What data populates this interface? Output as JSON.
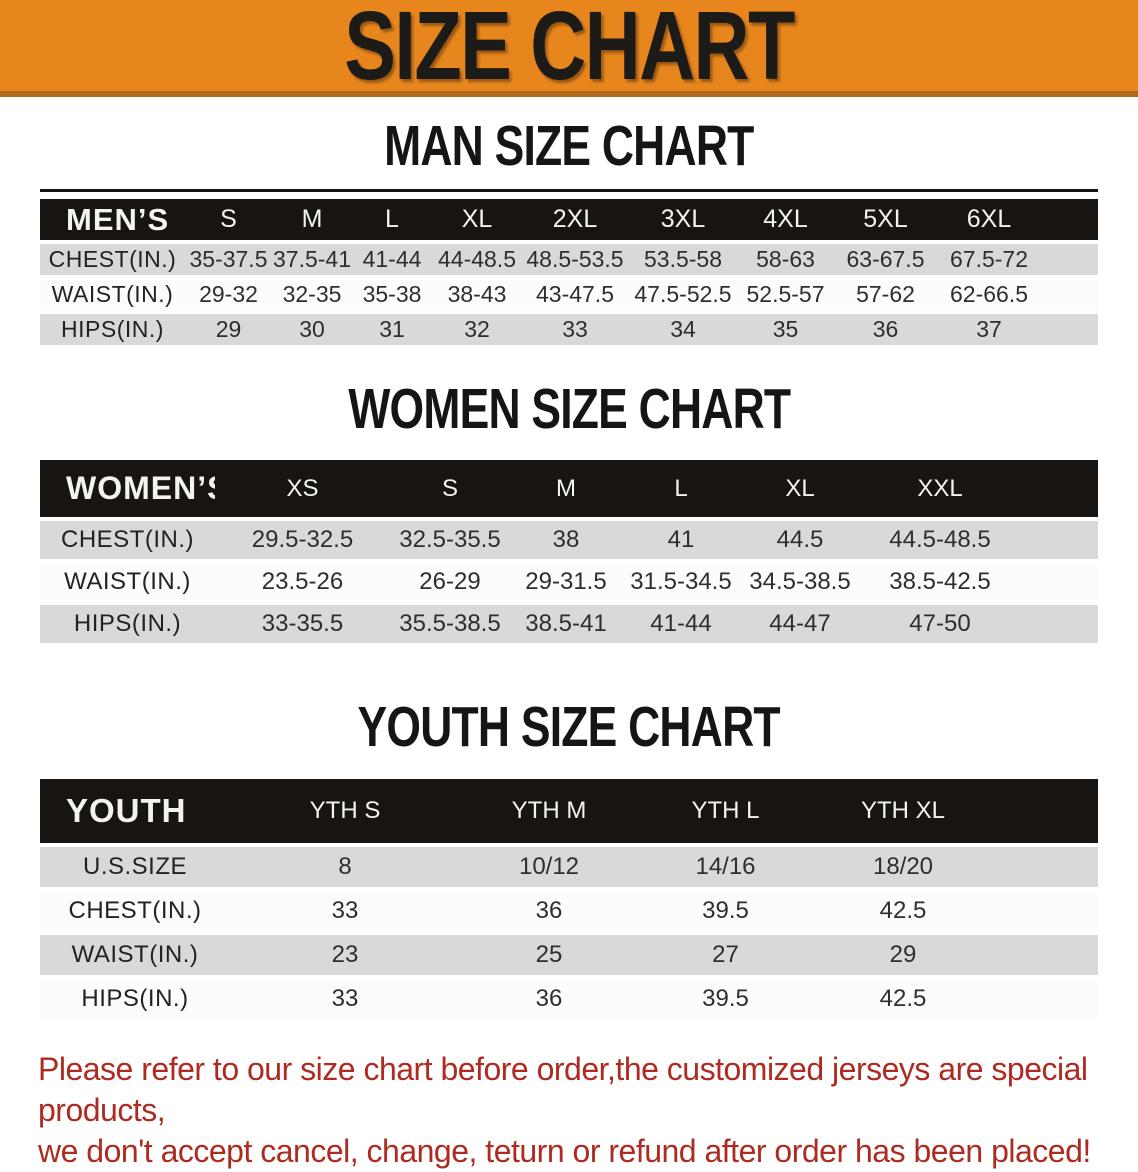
{
  "banner": {
    "title": "SIZE CHART"
  },
  "sections": [
    {
      "title": "MAN SIZE CHART",
      "table": {
        "header_label": "MEN’S",
        "columns": [
          "S",
          "M",
          "L",
          "XL",
          "2XL",
          "3XL",
          "4XL",
          "5XL",
          "6XL"
        ],
        "rows": [
          {
            "label": "CHEST(IN.)",
            "values": [
              "35-37.5",
              "37.5-41",
              "41-44",
              "44-48.5",
              "48.5-53.5",
              "53.5-58",
              "58-63",
              "63-67.5",
              "67.5-72"
            ]
          },
          {
            "label": "WAIST(IN.)",
            "values": [
              "29-32",
              "32-35",
              "35-38",
              "38-43",
              "43-47.5",
              "47.5-52.5",
              "52.5-57",
              "57-62",
              "62-66.5"
            ]
          },
          {
            "label": "HIPS(IN.)",
            "values": [
              "29",
              "30",
              "31",
              "32",
              "33",
              "34",
              "35",
              "36",
              "37"
            ]
          }
        ]
      }
    },
    {
      "title": "WOMEN SIZE CHART",
      "table": {
        "header_label": "WOMEN’S",
        "columns": [
          "XS",
          "S",
          "M",
          "L",
          "XL",
          "XXL"
        ],
        "rows": [
          {
            "label": "CHEST(IN.)",
            "values": [
              "29.5-32.5",
              "32.5-35.5",
              "38",
              "41",
              "44.5",
              "44.5-48.5"
            ]
          },
          {
            "label": "WAIST(IN.)",
            "values": [
              "23.5-26",
              "26-29",
              "29-31.5",
              "31.5-34.5",
              "34.5-38.5",
              "38.5-42.5"
            ]
          },
          {
            "label": "HIPS(IN.)",
            "values": [
              "33-35.5",
              "35.5-38.5",
              "38.5-41",
              "41-44",
              "44-47",
              "47-50"
            ]
          }
        ]
      }
    },
    {
      "title": "YOUTH SIZE CHART",
      "table": {
        "header_label": "YOUTH",
        "columns": [
          "YTH S",
          "YTH M",
          "YTH L",
          "YTH XL"
        ],
        "rows": [
          {
            "label": "U.S.SIZE",
            "values": [
              "8",
              "10/12",
              "14/16",
              "18/20"
            ]
          },
          {
            "label": "CHEST(IN.)",
            "values": [
              "33",
              "36",
              "39.5",
              "42.5"
            ]
          },
          {
            "label": "WAIST(IN.)",
            "values": [
              "23",
              "25",
              "27",
              "29"
            ]
          },
          {
            "label": "HIPS(IN.)",
            "values": [
              "33",
              "36",
              "39.5",
              "42.5"
            ]
          }
        ]
      }
    }
  ],
  "footer": {
    "line1": "Please refer to our size chart before order,the customized jerseys are special products,",
    "line2": "we don't accept cancel, change, teturn or refund after order has been placed!"
  },
  "colors": {
    "banner_bg": "#E8861E",
    "banner_border": "#B2691C",
    "header_bar": "#171412",
    "row_gray": "#D9D9D9",
    "row_white": "#FCFCFC",
    "footer_red": "#AD2B20"
  }
}
